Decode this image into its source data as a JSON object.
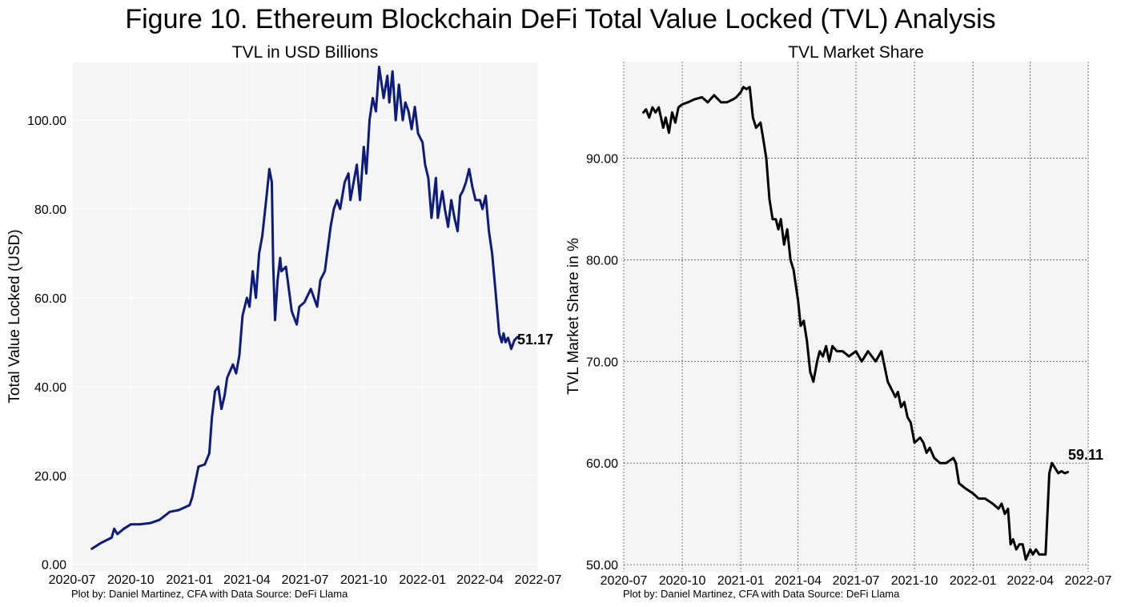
{
  "figure_title": "Figure 10. Ethereum Blockchain DeFi Total Value Locked (TVL) Analysis",
  "credits": {
    "left": "Plot by: Daniel Martinez, CFA with Data Source: DeFi Llama",
    "right": "Plot by: Daniel Martinez, CFA with Data Source: DeFi Llama"
  },
  "chart_data": [
    {
      "type": "line",
      "title": "TVL in USD Billions",
      "xlabel": "",
      "ylabel": "Total Value Locked (USD)",
      "x_ticks": [
        "2020-07",
        "2020-10",
        "2021-01",
        "2021-04",
        "2021-07",
        "2021-10",
        "2022-01",
        "2022-04",
        "2022-07"
      ],
      "y_ticks": [
        "0.00",
        "20.00",
        "40.00",
        "60.00",
        "80.00",
        "100.00"
      ],
      "xlim": [
        "2020-07",
        "2022-07"
      ],
      "ylim": [
        -1.5,
        113
      ],
      "grid": true,
      "line_color": "#0d1b7a",
      "end_label": "51.17",
      "series": [
        {
          "x": [
            "2020-08-01",
            "2020-08-15",
            "2020-09-01",
            "2020-09-05",
            "2020-09-10",
            "2020-09-20",
            "2020-10-01",
            "2020-10-15",
            "2020-11-01",
            "2020-11-15",
            "2020-12-01",
            "2020-12-15",
            "2021-01-01",
            "2021-01-05",
            "2021-01-15",
            "2021-01-25",
            "2021-02-01",
            "2021-02-05",
            "2021-02-10",
            "2021-02-15",
            "2021-02-20",
            "2021-02-25",
            "2021-03-01",
            "2021-03-10",
            "2021-03-15",
            "2021-03-20",
            "2021-03-25",
            "2021-04-01",
            "2021-04-05",
            "2021-04-10",
            "2021-04-15",
            "2021-04-20",
            "2021-04-25",
            "2021-05-01",
            "2021-05-06",
            "2021-05-10",
            "2021-05-12",
            "2021-05-15",
            "2021-05-19",
            "2021-05-23",
            "2021-05-25",
            "2021-06-01",
            "2021-06-10",
            "2021-06-18",
            "2021-06-22",
            "2021-06-30",
            "2021-07-10",
            "2021-07-20",
            "2021-07-25",
            "2021-08-01",
            "2021-08-10",
            "2021-08-15",
            "2021-08-20",
            "2021-08-25",
            "2021-09-01",
            "2021-09-07",
            "2021-09-10",
            "2021-09-20",
            "2021-09-25",
            "2021-10-01",
            "2021-10-05",
            "2021-10-10",
            "2021-10-15",
            "2021-10-20",
            "2021-10-25",
            "2021-11-01",
            "2021-11-07",
            "2021-11-10",
            "2021-11-15",
            "2021-11-20",
            "2021-11-25",
            "2021-12-01",
            "2021-12-05",
            "2021-12-10",
            "2021-12-15",
            "2021-12-20",
            "2021-12-25",
            "2022-01-01",
            "2022-01-05",
            "2022-01-10",
            "2022-01-15",
            "2022-01-22",
            "2022-01-25",
            "2022-02-01",
            "2022-02-05",
            "2022-02-10",
            "2022-02-15",
            "2022-02-20",
            "2022-02-25",
            "2022-03-01",
            "2022-03-05",
            "2022-03-10",
            "2022-03-15",
            "2022-03-20",
            "2022-03-25",
            "2022-04-01",
            "2022-04-05",
            "2022-04-10",
            "2022-04-15",
            "2022-04-20",
            "2022-04-25",
            "2022-05-01",
            "2022-05-05",
            "2022-05-08",
            "2022-05-11",
            "2022-05-15",
            "2022-05-20",
            "2022-05-25",
            "2022-05-30"
          ],
          "y": [
            3.5,
            4.8,
            6.0,
            8.0,
            6.8,
            8.0,
            9.0,
            9.0,
            9.3,
            10.0,
            11.8,
            12.2,
            13.3,
            15.0,
            22.0,
            22.5,
            25.0,
            33.0,
            39.0,
            40.0,
            35.0,
            38.0,
            42.0,
            45.0,
            43.0,
            47.0,
            56.0,
            60.0,
            58.0,
            66.0,
            60.0,
            70.0,
            74.0,
            82.0,
            89.0,
            86.0,
            68.0,
            55.0,
            64.0,
            69.0,
            66.0,
            67.0,
            57.0,
            54.0,
            58.0,
            59.0,
            62.0,
            58.0,
            64.0,
            66.0,
            76.0,
            80.0,
            82.0,
            80.0,
            86.0,
            88.0,
            82.0,
            90.0,
            82.0,
            94.0,
            88.0,
            100.0,
            105.0,
            102.0,
            112.0,
            105.0,
            110.0,
            104.0,
            111.0,
            100.0,
            108.0,
            100.0,
            104.0,
            102.0,
            98.0,
            103.0,
            97.0,
            95.0,
            90.0,
            87.0,
            78.0,
            87.0,
            78.0,
            84.0,
            80.0,
            76.0,
            82.0,
            78.0,
            75.0,
            83.0,
            84.0,
            86.0,
            89.0,
            85.0,
            82.0,
            82.0,
            80.0,
            83.0,
            75.0,
            70.0,
            62.0,
            52.0,
            50.0,
            52.0,
            50.0,
            51.0,
            48.5,
            50.5,
            51.17
          ]
        }
      ]
    },
    {
      "type": "line",
      "title": "TVL Market Share",
      "xlabel": "",
      "ylabel": "TVL Market Share in %",
      "x_ticks": [
        "2020-07",
        "2020-10",
        "2021-01",
        "2021-04",
        "2021-07",
        "2021-10",
        "2022-01",
        "2022-04",
        "2022-07"
      ],
      "y_ticks": [
        "50.00",
        "60.00",
        "70.00",
        "80.00",
        "90.00"
      ],
      "xlim": [
        "2020-07",
        "2022-07"
      ],
      "ylim": [
        49.3,
        99.5
      ],
      "grid": true,
      "line_color": "#000000",
      "end_label": "59.11",
      "series": [
        {
          "x": [
            "2020-08-01",
            "2020-08-05",
            "2020-08-10",
            "2020-08-15",
            "2020-08-20",
            "2020-08-25",
            "2020-09-01",
            "2020-09-05",
            "2020-09-10",
            "2020-09-15",
            "2020-09-20",
            "2020-09-25",
            "2020-10-01",
            "2020-10-10",
            "2020-10-20",
            "2020-11-01",
            "2020-11-10",
            "2020-11-20",
            "2020-12-01",
            "2020-12-10",
            "2020-12-20",
            "2020-12-25",
            "2021-01-01",
            "2021-01-05",
            "2021-01-10",
            "2021-01-15",
            "2021-01-20",
            "2021-01-25",
            "2021-02-01",
            "2021-02-05",
            "2021-02-10",
            "2021-02-15",
            "2021-02-20",
            "2021-02-25",
            "2021-03-01",
            "2021-03-05",
            "2021-03-10",
            "2021-03-15",
            "2021-03-20",
            "2021-03-25",
            "2021-04-01",
            "2021-04-05",
            "2021-04-10",
            "2021-04-15",
            "2021-04-20",
            "2021-04-25",
            "2021-05-01",
            "2021-05-05",
            "2021-05-10",
            "2021-05-15",
            "2021-05-20",
            "2021-05-25",
            "2021-06-01",
            "2021-06-10",
            "2021-06-20",
            "2021-07-01",
            "2021-07-10",
            "2021-07-20",
            "2021-08-01",
            "2021-08-10",
            "2021-08-20",
            "2021-09-01",
            "2021-09-05",
            "2021-09-10",
            "2021-09-15",
            "2021-09-20",
            "2021-09-25",
            "2021-10-01",
            "2021-10-10",
            "2021-10-15",
            "2021-10-20",
            "2021-10-25",
            "2021-11-01",
            "2021-11-10",
            "2021-11-20",
            "2021-12-01",
            "2021-12-05",
            "2021-12-10",
            "2021-12-20",
            "2022-01-01",
            "2022-01-10",
            "2022-01-20",
            "2022-02-01",
            "2022-02-10",
            "2022-02-15",
            "2022-02-20",
            "2022-02-25",
            "2022-03-01",
            "2022-03-05",
            "2022-03-10",
            "2022-03-15",
            "2022-03-20",
            "2022-03-25",
            "2022-04-01",
            "2022-04-05",
            "2022-04-10",
            "2022-04-15",
            "2022-04-20",
            "2022-04-25",
            "2022-05-01",
            "2022-05-05",
            "2022-05-10",
            "2022-05-15",
            "2022-05-20",
            "2022-05-25",
            "2022-05-30"
          ],
          "y": [
            94.5,
            94.8,
            94.0,
            95.0,
            94.5,
            95.0,
            93.0,
            94.0,
            92.5,
            94.5,
            93.5,
            95.0,
            95.3,
            95.5,
            95.8,
            96.0,
            95.5,
            96.2,
            95.5,
            95.5,
            95.8,
            96.0,
            96.5,
            97.0,
            96.8,
            97.0,
            94.0,
            93.0,
            93.5,
            92.0,
            90.0,
            86.0,
            84.0,
            84.0,
            83.0,
            84.0,
            81.5,
            83.0,
            80.0,
            79.0,
            76.0,
            73.5,
            74.0,
            72.0,
            69.0,
            68.0,
            70.0,
            71.0,
            70.5,
            71.5,
            70.0,
            71.5,
            71.0,
            71.0,
            70.5,
            71.0,
            70.0,
            71.0,
            70.0,
            71.0,
            68.0,
            66.5,
            67.0,
            65.5,
            66.0,
            64.5,
            64.0,
            62.0,
            62.5,
            62.0,
            61.0,
            61.5,
            60.5,
            60.0,
            60.0,
            60.5,
            60.0,
            58.0,
            57.5,
            57.0,
            56.5,
            56.5,
            56.0,
            55.5,
            56.0,
            55.0,
            55.5,
            52.0,
            52.5,
            51.5,
            52.0,
            52.0,
            50.5,
            51.5,
            51.0,
            51.5,
            51.0,
            51.0,
            51.0,
            59.0,
            60.0,
            59.5,
            59.0,
            59.2,
            59.0,
            59.11
          ]
        }
      ]
    }
  ]
}
